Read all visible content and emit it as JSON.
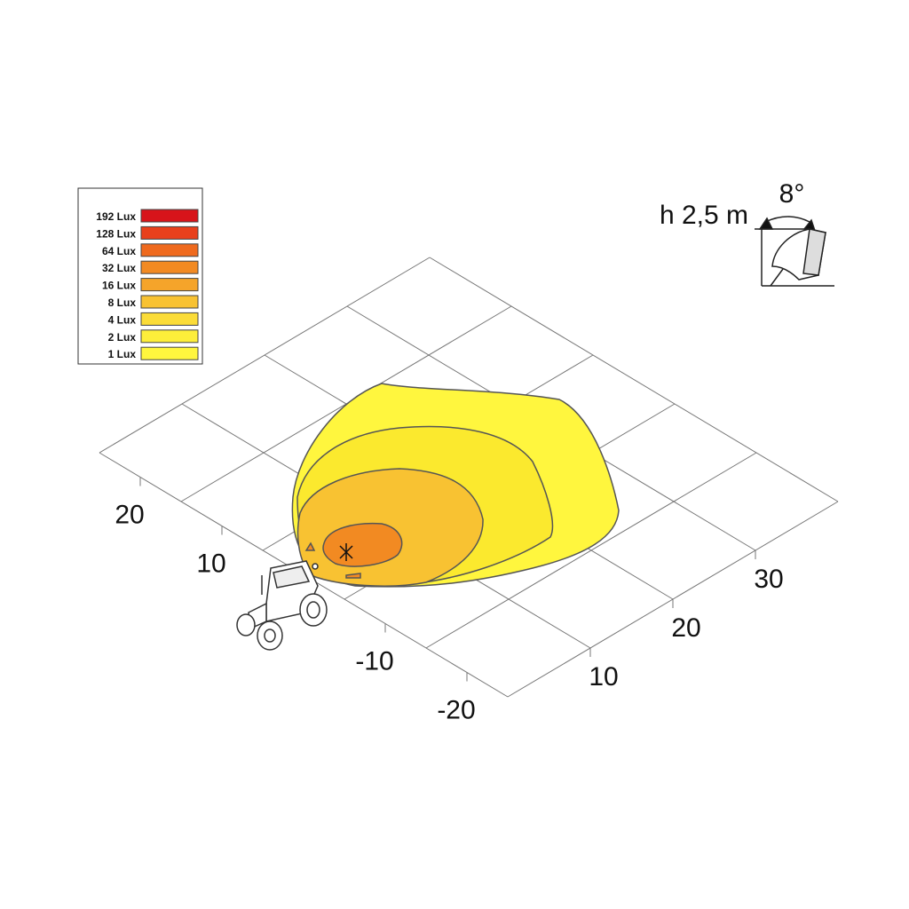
{
  "legend": [
    {
      "label": "192 Lux",
      "color": "#d7141a"
    },
    {
      "label": "128 Lux",
      "color": "#e8401c"
    },
    {
      "label": "64 Lux",
      "color": "#ef6a1e"
    },
    {
      "label": "32 Lux",
      "color": "#f28a22"
    },
    {
      "label": "16 Lux",
      "color": "#f5a42a"
    },
    {
      "label": "8 Lux",
      "color": "#f8c232"
    },
    {
      "label": "4 Lux",
      "color": "#fbdc38"
    },
    {
      "label": "2 Lux",
      "color": "#fdee3a"
    },
    {
      "label": "1 Lux",
      "color": "#fff63e"
    }
  ],
  "mount": {
    "height": "h 2,5 m",
    "angle": "8°"
  },
  "axes": {
    "left": [
      "20",
      "10",
      "-10",
      "-20"
    ],
    "right": [
      "10",
      "20",
      "30"
    ]
  }
}
